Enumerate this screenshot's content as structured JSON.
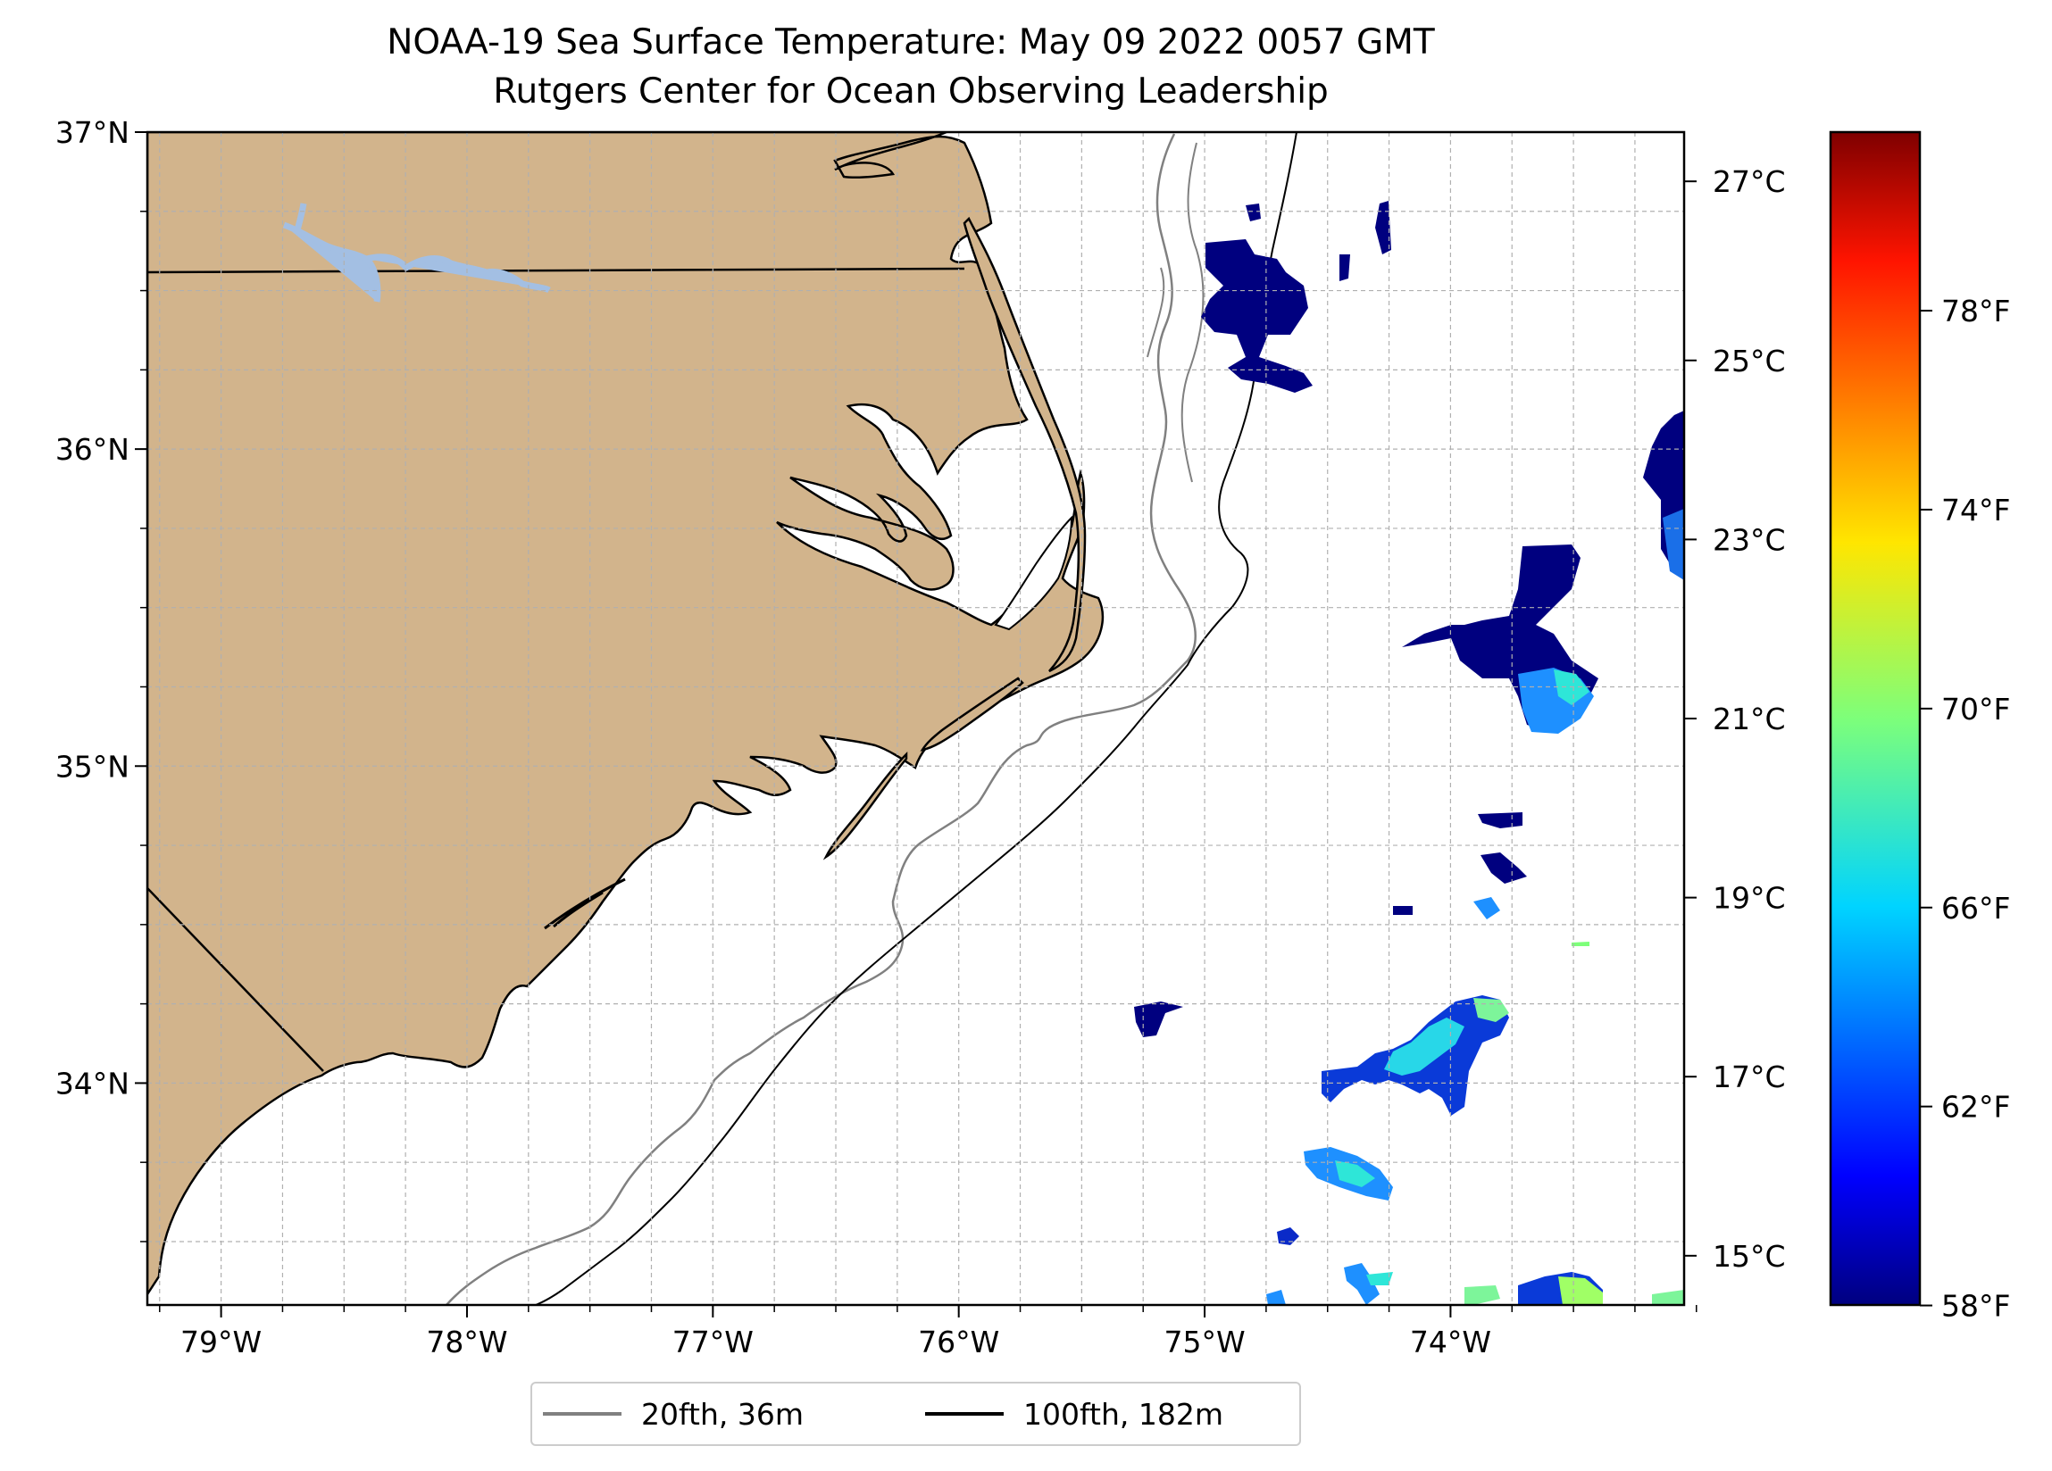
{
  "title": {
    "line1": "NOAA-19 Sea Surface Temperature: May 09 2022 0057 GMT",
    "line2": "Rutgers Center for Ocean Observing Leadership"
  },
  "map": {
    "lon_range": [
      -79.3,
      -73.05
    ],
    "lat_range": [
      33.3,
      37.0
    ],
    "x_ticks": [
      {
        "value": -79,
        "label": "79°W"
      },
      {
        "value": -78,
        "label": "78°W"
      },
      {
        "value": -77,
        "label": "77°W"
      },
      {
        "value": -76,
        "label": "76°W"
      },
      {
        "value": -75,
        "label": "75°W"
      },
      {
        "value": -74,
        "label": "74°W"
      }
    ],
    "y_ticks": [
      {
        "value": 37,
        "label": "37°N"
      },
      {
        "value": 36,
        "label": "36°N"
      },
      {
        "value": 35,
        "label": "35°N"
      },
      {
        "value": 34,
        "label": "34°N"
      }
    ],
    "grid": true,
    "land_color": "#d2b48c",
    "lake_color": "#a3bfe3"
  },
  "colorbar": {
    "colormap": "jet",
    "celsius_ticks": [
      {
        "value": 27,
        "label": "27°C"
      },
      {
        "value": 25,
        "label": "25°C"
      },
      {
        "value": 23,
        "label": "23°C"
      },
      {
        "value": 21,
        "label": "21°C"
      },
      {
        "value": 19,
        "label": "19°C"
      },
      {
        "value": 17,
        "label": "17°C"
      },
      {
        "value": 15,
        "label": "15°C"
      }
    ],
    "fahrenheit_ticks": [
      {
        "value": 78,
        "label": "78°F"
      },
      {
        "value": 74,
        "label": "74°F"
      },
      {
        "value": 70,
        "label": "70°F"
      },
      {
        "value": 66,
        "label": "66°F"
      },
      {
        "value": 62,
        "label": "62°F"
      },
      {
        "value": 58,
        "label": "58°F"
      }
    ]
  },
  "legend": {
    "items": [
      {
        "label": "20fth, 36m",
        "color": "#808080"
      },
      {
        "label": "100fth, 182m",
        "color": "#000000"
      }
    ]
  }
}
